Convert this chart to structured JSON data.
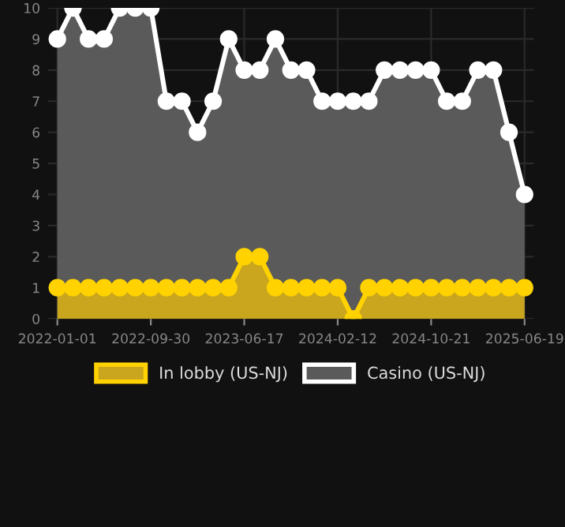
{
  "chart_data": {
    "type": "area",
    "categories": [
      "2022-01-01",
      null,
      null,
      null,
      null,
      null,
      "2022-09-30",
      null,
      null,
      null,
      null,
      null,
      "2023-06-17",
      null,
      null,
      null,
      null,
      null,
      "2024-02-12",
      null,
      null,
      null,
      null,
      null,
      "2024-10-21",
      null,
      null,
      null,
      null,
      null,
      "2025-06-19"
    ],
    "series": [
      {
        "name": "In lobby (US-NJ)",
        "color": "#ffd200",
        "values": [
          1,
          1,
          1,
          1,
          1,
          1,
          1,
          1,
          1,
          1,
          1,
          1,
          2,
          2,
          1,
          1,
          1,
          1,
          1,
          0,
          1,
          1,
          1,
          1,
          1,
          1,
          1,
          1,
          1,
          1,
          1
        ]
      },
      {
        "name": "Casino (US-NJ)",
        "color": "#ffffff",
        "values": [
          9,
          10,
          9,
          9,
          10,
          10,
          10,
          7,
          7,
          6,
          7,
          9,
          8,
          8,
          9,
          8,
          8,
          7,
          7,
          7,
          7,
          8,
          8,
          8,
          8,
          7,
          7,
          8,
          8,
          6,
          4
        ]
      }
    ],
    "ylim": [
      0,
      10
    ],
    "yticks": [
      0,
      1,
      2,
      3,
      4,
      5,
      6,
      7,
      8,
      9,
      10
    ],
    "grid": true,
    "legend": "bottom",
    "marker": "circle"
  }
}
